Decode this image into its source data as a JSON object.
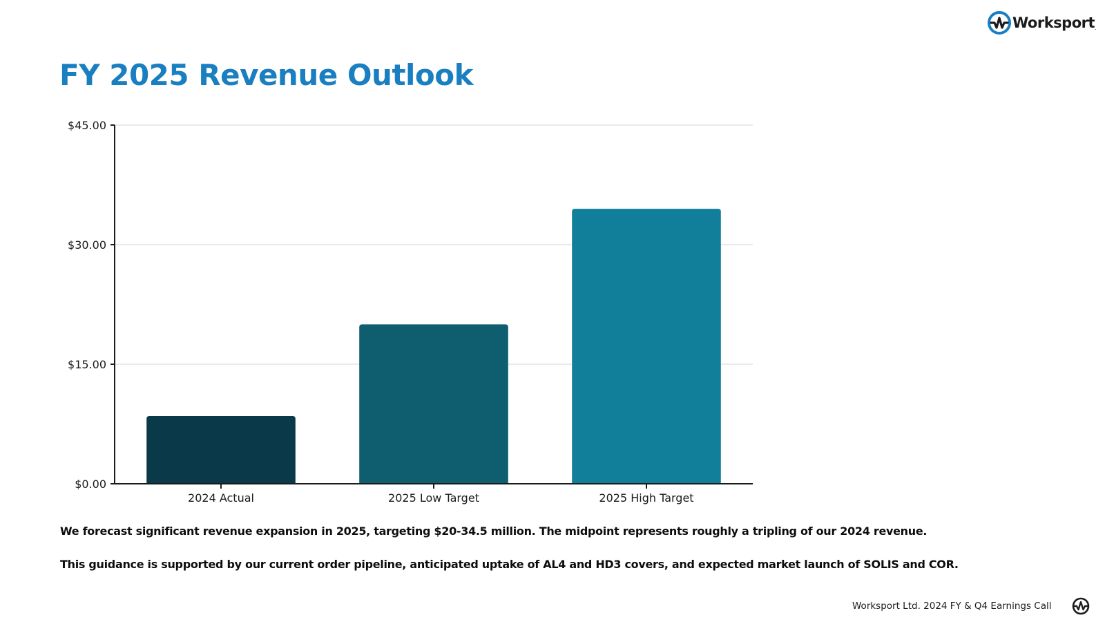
{
  "brand": {
    "name": "Worksport",
    "trademark": ".",
    "accent_color": "#1a7fc1"
  },
  "slide": {
    "title": "FY 2025 Revenue Outlook",
    "paragraphs": [
      "We forecast significant revenue expansion in 2025, targeting $20-34.5 million. The midpoint represents roughly a tripling of our 2024 revenue.",
      "This guidance is supported by our current order pipeline, anticipated uptake of AL4 and HD3 covers, and expected market launch of SOLIS and COR."
    ],
    "footer": "Worksport Ltd. 2024 FY & Q4 Earnings Call"
  },
  "chart_data": {
    "type": "bar",
    "title": "",
    "xlabel": "",
    "ylabel": "",
    "categories": [
      "2024 Actual",
      "2025 Low Target",
      "2025 High Target"
    ],
    "values": [
      8.5,
      20.0,
      34.5
    ],
    "colors": [
      "#0a3a4a",
      "#0e5e70",
      "#117f9a"
    ],
    "ylim": [
      0,
      45
    ],
    "yticks": [
      0,
      15,
      30,
      45
    ],
    "ytick_labels": [
      "$0.00",
      "$15.00",
      "$30.00",
      "$45.00"
    ],
    "grid": true
  }
}
